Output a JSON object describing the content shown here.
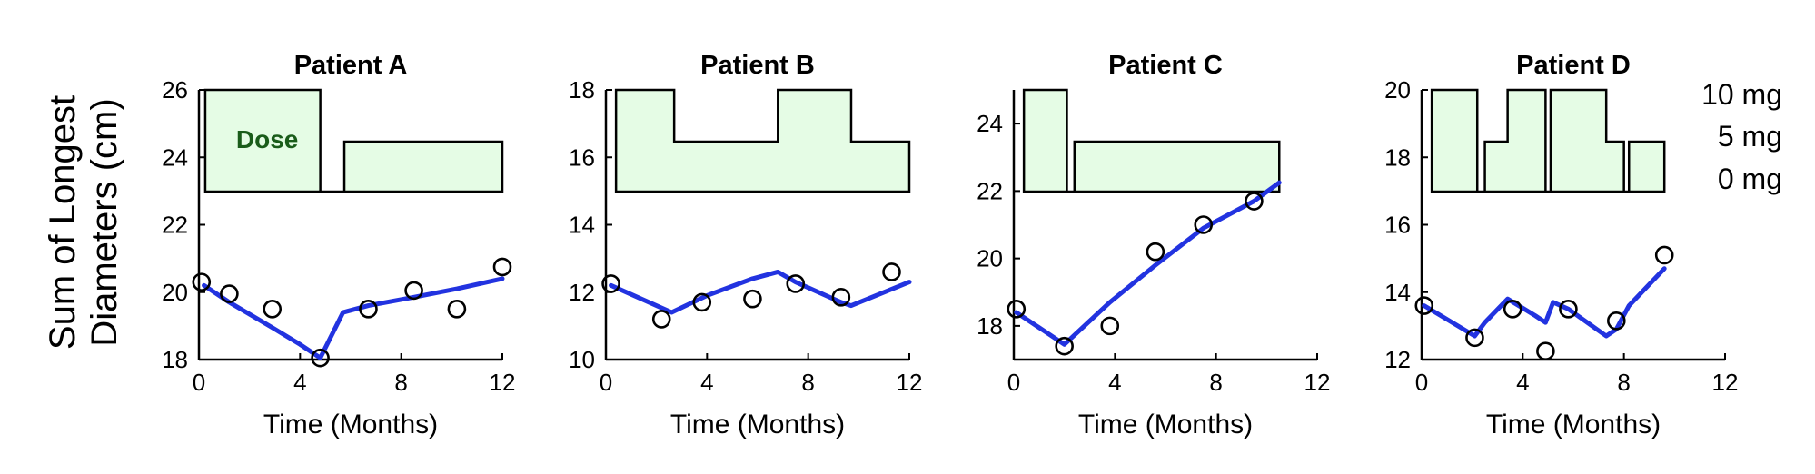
{
  "figure": {
    "ylabel_line1": "Sum of Longest",
    "ylabel_line2": "Diameters (cm)",
    "dose_levels": [
      "10 mg",
      "5 mg",
      "0 mg"
    ]
  },
  "colors": {
    "model_line": "#2233e0",
    "dose_fill": "#e5fce5",
    "dose_text": "#1a5c1a",
    "axis": "#000000"
  },
  "chart_data": [
    {
      "type": "line",
      "title": "Patient A",
      "xlabel": "Time (Months)",
      "ylabel": "Sum of Longest Diameters (cm)",
      "xlim": [
        0,
        12
      ],
      "ylim": [
        18,
        26
      ],
      "xticks": [
        "0",
        "4",
        "8",
        "12"
      ],
      "yticks": [
        "18",
        "20",
        "22",
        "24",
        "26"
      ],
      "dose_annotation": "Dose",
      "dose_schedule": [
        {
          "start": 0.25,
          "end": 4.8,
          "dose_mg": 10
        },
        {
          "start": 4.8,
          "end": 5.75,
          "dose_mg": 0
        },
        {
          "start": 5.75,
          "end": 12,
          "dose_mg": 5
        }
      ],
      "observed": {
        "x": [
          0.1,
          1.2,
          2.9,
          4.8,
          6.7,
          8.5,
          10.2,
          12.0
        ],
        "y": [
          20.3,
          19.95,
          19.5,
          18.05,
          19.5,
          20.05,
          19.5,
          20.75
        ]
      },
      "model": {
        "x": [
          0.2,
          1.2,
          2.9,
          4.0,
          4.8,
          5.7,
          6.7,
          8.5,
          10.2,
          12.0
        ],
        "y": [
          20.2,
          19.7,
          18.95,
          18.45,
          18.05,
          19.4,
          19.6,
          19.85,
          20.1,
          20.4
        ]
      }
    },
    {
      "type": "line",
      "title": "Patient B",
      "xlabel": "Time (Months)",
      "ylabel": "",
      "xlim": [
        0,
        12
      ],
      "ylim": [
        10,
        18
      ],
      "xticks": [
        "0",
        "4",
        "8",
        "12"
      ],
      "yticks": [
        "10",
        "12",
        "14",
        "16",
        "18"
      ],
      "dose_schedule": [
        {
          "start": 0.4,
          "end": 2.7,
          "dose_mg": 10
        },
        {
          "start": 2.7,
          "end": 6.8,
          "dose_mg": 5
        },
        {
          "start": 6.8,
          "end": 9.7,
          "dose_mg": 10
        },
        {
          "start": 9.7,
          "end": 12,
          "dose_mg": 5
        }
      ],
      "observed": {
        "x": [
          0.2,
          2.2,
          3.8,
          5.8,
          7.5,
          9.3,
          11.3
        ],
        "y": [
          12.25,
          11.2,
          11.7,
          11.8,
          12.25,
          11.85,
          12.6
        ]
      },
      "model": {
        "x": [
          0.2,
          2.6,
          4.0,
          5.8,
          6.8,
          7.5,
          9.3,
          9.7,
          12.0
        ],
        "y": [
          12.2,
          11.4,
          11.9,
          12.4,
          12.6,
          12.3,
          11.7,
          11.6,
          12.3
        ]
      }
    },
    {
      "type": "line",
      "title": "Patient C",
      "xlabel": "Time (Months)",
      "ylabel": "",
      "xlim": [
        0,
        12
      ],
      "ylim": [
        17,
        25
      ],
      "xticks": [
        "0",
        "4",
        "8",
        "12"
      ],
      "yticks": [
        "18",
        "20",
        "22",
        "24"
      ],
      "dose_schedule": [
        {
          "start": 0.4,
          "end": 2.1,
          "dose_mg": 10
        },
        {
          "start": 2.1,
          "end": 2.4,
          "dose_mg": 0
        },
        {
          "start": 2.4,
          "end": 10.5,
          "dose_mg": 5
        }
      ],
      "observed": {
        "x": [
          0.1,
          2.0,
          3.8,
          5.6,
          7.5,
          9.5
        ],
        "y": [
          18.5,
          17.4,
          18.0,
          20.2,
          21.0,
          21.7
        ]
      },
      "model": {
        "x": [
          0.1,
          2.0,
          3.8,
          5.6,
          7.5,
          9.5,
          10.5
        ],
        "y": [
          18.4,
          17.45,
          18.7,
          19.8,
          20.9,
          21.7,
          22.25
        ]
      }
    },
    {
      "type": "line",
      "title": "Patient D",
      "xlabel": "Time (Months)",
      "ylabel": "",
      "xlim": [
        0,
        12
      ],
      "ylim": [
        12,
        20
      ],
      "xticks": [
        "0",
        "4",
        "8",
        "12"
      ],
      "yticks": [
        "12",
        "14",
        "16",
        "18",
        "20"
      ],
      "dose_schedule": [
        {
          "start": 0.4,
          "end": 2.2,
          "dose_mg": 10
        },
        {
          "start": 2.2,
          "end": 2.5,
          "dose_mg": 0
        },
        {
          "start": 2.5,
          "end": 3.4,
          "dose_mg": 5
        },
        {
          "start": 3.4,
          "end": 4.9,
          "dose_mg": 10
        },
        {
          "start": 4.9,
          "end": 5.1,
          "dose_mg": 0
        },
        {
          "start": 5.1,
          "end": 7.3,
          "dose_mg": 10
        },
        {
          "start": 7.3,
          "end": 8.0,
          "dose_mg": 5
        },
        {
          "start": 8.0,
          "end": 8.2,
          "dose_mg": 0
        },
        {
          "start": 8.2,
          "end": 9.6,
          "dose_mg": 5
        }
      ],
      "observed": {
        "x": [
          0.1,
          2.1,
          3.6,
          4.9,
          5.8,
          7.7,
          9.6
        ],
        "y": [
          13.6,
          12.65,
          13.5,
          12.25,
          13.5,
          13.15,
          15.1
        ]
      },
      "model": {
        "x": [
          0.1,
          2.1,
          2.5,
          3.4,
          4.5,
          4.9,
          5.2,
          5.8,
          7.3,
          7.7,
          8.2,
          9.6
        ],
        "y": [
          13.6,
          12.7,
          13.1,
          13.8,
          13.3,
          13.1,
          13.7,
          13.5,
          12.7,
          12.9,
          13.6,
          14.7
        ]
      }
    }
  ]
}
